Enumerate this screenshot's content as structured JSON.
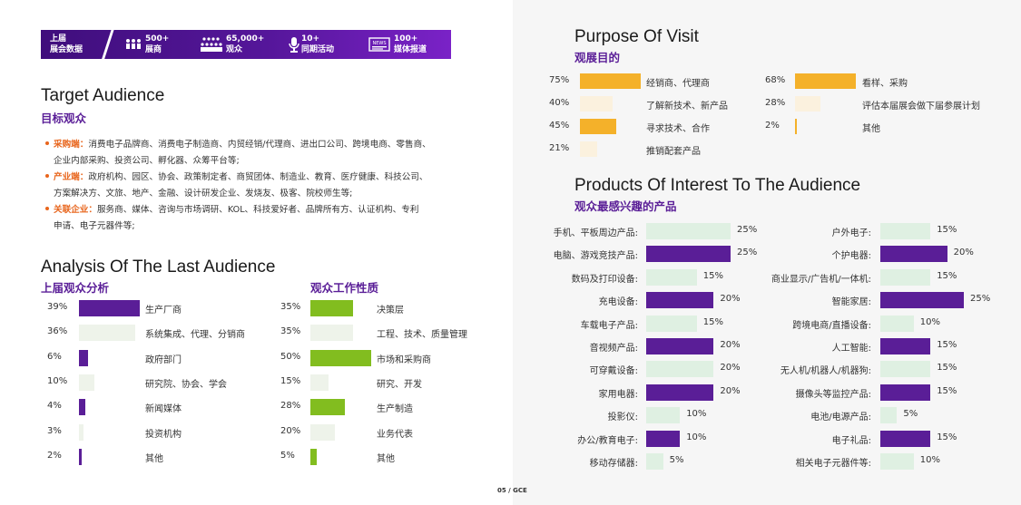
{
  "banner": {
    "label": "上届\n展会数据",
    "stats": [
      {
        "icon": "people-group-icon",
        "value": "500+",
        "label": "展商"
      },
      {
        "icon": "crowd-icon",
        "value": "65,000+",
        "label": "观众"
      },
      {
        "icon": "microphone-icon",
        "value": "10+",
        "label": "同期活动"
      },
      {
        "icon": "news-icon",
        "value": "100+",
        "label": "媒体报道"
      }
    ]
  },
  "target": {
    "title_en": "Target Audience",
    "title_cn": "目标观众",
    "lines": [
      {
        "key": "采购端：",
        "text": "消费电子品牌商、消费电子制造商、内贸经销/代理商、进出口公司、跨境电商、零售商、"
      },
      {
        "key": "",
        "text": "企业内部采购、投资公司、孵化器、众筹平台等;"
      },
      {
        "key": "产业端：",
        "text": "政府机构、园区、协会、政策制定者、商贸团体、制造业、教育、医疗健康、科技公司、"
      },
      {
        "key": "",
        "text": "方案解决方、文旅、地产、金融、设计研发企业、发烧友、极客、院校师生等;"
      },
      {
        "key": "关联企业：",
        "text": "服务商、媒体、咨询与市场调研、KOL、科技爱好者、品牌所有方、认证机构、专利"
      },
      {
        "key": "",
        "text": "申请、电子元器件等;"
      }
    ]
  },
  "analysis": {
    "title_en": "Analysis Of The Last Audience",
    "left_title": "上届观众分析",
    "right_title": "观众工作性质",
    "left": [
      {
        "pct": "39%",
        "value": 39,
        "label": "生产厂商",
        "style": "purple"
      },
      {
        "pct": "36%",
        "value": 36,
        "label": "系统集成、代理、分销商",
        "style": "lightg"
      },
      {
        "pct": "6%",
        "value": 6,
        "label": "政府部门",
        "style": "purple"
      },
      {
        "pct": "10%",
        "value": 10,
        "label": "研究院、协会、学会",
        "style": "lightg"
      },
      {
        "pct": "4%",
        "value": 4,
        "label": "新闻媒体",
        "style": "purple"
      },
      {
        "pct": "3%",
        "value": 3,
        "label": "投资机构",
        "style": "lightg"
      },
      {
        "pct": "2%",
        "value": 2,
        "label": "其他",
        "style": "purple"
      }
    ],
    "right": [
      {
        "pct": "35%",
        "value": 35,
        "label": "决策层",
        "style": "green"
      },
      {
        "pct": "35%",
        "value": 35,
        "label": "工程、技术、质量管理",
        "style": "lightg"
      },
      {
        "pct": "50%",
        "value": 50,
        "label": "市场和采购商",
        "style": "green"
      },
      {
        "pct": "15%",
        "value": 15,
        "label": "研究、开发",
        "style": "lightg"
      },
      {
        "pct": "28%",
        "value": 28,
        "label": "生产制造",
        "style": "green"
      },
      {
        "pct": "20%",
        "value": 20,
        "label": "业务代表",
        "style": "lightg"
      },
      {
        "pct": "5%",
        "value": 5,
        "label": "其他",
        "style": "green"
      }
    ]
  },
  "purpose": {
    "title_en": "Purpose Of Visit",
    "title_cn": "观展目的",
    "left": [
      {
        "pct": "75%",
        "value": 75,
        "label": "经销商、代理商",
        "style": "orange"
      },
      {
        "pct": "40%",
        "value": 40,
        "label": "了解新技术、新产品",
        "style": "cream"
      },
      {
        "pct": "45%",
        "value": 45,
        "label": "寻求技术、合作",
        "style": "orange"
      },
      {
        "pct": "21%",
        "value": 21,
        "label": "推销配套产品",
        "style": "cream"
      }
    ],
    "right": [
      {
        "pct": "68%",
        "value": 68,
        "label": "看样、采购",
        "style": "orange"
      },
      {
        "pct": "28%",
        "value": 28,
        "label": "评估本届展会做下届参展计划",
        "style": "cream"
      },
      {
        "pct": "2%",
        "value": 2,
        "label": "其他",
        "style": "orange"
      }
    ]
  },
  "products": {
    "title_en": "Products Of Interest To The Audience",
    "title_cn": "观众最感兴趣的产品",
    "left": [
      {
        "label": "手机、平板周边产品:",
        "pct": "25%",
        "value": 25,
        "style": "pale"
      },
      {
        "label": "电脑、游戏竞技产品:",
        "pct": "25%",
        "value": 25,
        "style": "purple"
      },
      {
        "label": "数码及打印设备:",
        "pct": "15%",
        "value": 15,
        "style": "pale"
      },
      {
        "label": "充电设备:",
        "pct": "20%",
        "value": 20,
        "style": "purple"
      },
      {
        "label": "车载电子产品:",
        "pct": "15%",
        "value": 15,
        "style": "pale"
      },
      {
        "label": "音视频产品:",
        "pct": "20%",
        "value": 20,
        "style": "purple"
      },
      {
        "label": "可穿戴设备:",
        "pct": "20%",
        "value": 20,
        "style": "pale"
      },
      {
        "label": "家用电器:",
        "pct": "20%",
        "value": 20,
        "style": "purple"
      },
      {
        "label": "投影仪:",
        "pct": "10%",
        "value": 10,
        "style": "pale"
      },
      {
        "label": "办公/教育电子:",
        "pct": "10%",
        "value": 10,
        "style": "purple"
      },
      {
        "label": "移动存储器:",
        "pct": "5%",
        "value": 5,
        "style": "pale"
      }
    ],
    "right": [
      {
        "label": "户外电子:",
        "pct": "15%",
        "value": 15,
        "style": "pale"
      },
      {
        "label": "个护电器:",
        "pct": "20%",
        "value": 20,
        "style": "purple"
      },
      {
        "label": "商业显示/广告机/一体机:",
        "pct": "15%",
        "value": 15,
        "style": "pale"
      },
      {
        "label": "智能家居:",
        "pct": "25%",
        "value": 25,
        "style": "purple"
      },
      {
        "label": "跨境电商/直播设备:",
        "pct": "10%",
        "value": 10,
        "style": "pale"
      },
      {
        "label": "人工智能:",
        "pct": "15%",
        "value": 15,
        "style": "purple"
      },
      {
        "label": "无人机/机器人/机器狗:",
        "pct": "15%",
        "value": 15,
        "style": "pale"
      },
      {
        "label": "摄像头等监控产品:",
        "pct": "15%",
        "value": 15,
        "style": "purple"
      },
      {
        "label": "电池/电源产品:",
        "pct": "5%",
        "value": 5,
        "style": "pale"
      },
      {
        "label": "电子礼品:",
        "pct": "15%",
        "value": 15,
        "style": "purple"
      },
      {
        "label": "相关电子元器件等:",
        "pct": "10%",
        "value": 10,
        "style": "pale"
      }
    ]
  },
  "footer": {
    "page": "05 / GCE"
  }
}
